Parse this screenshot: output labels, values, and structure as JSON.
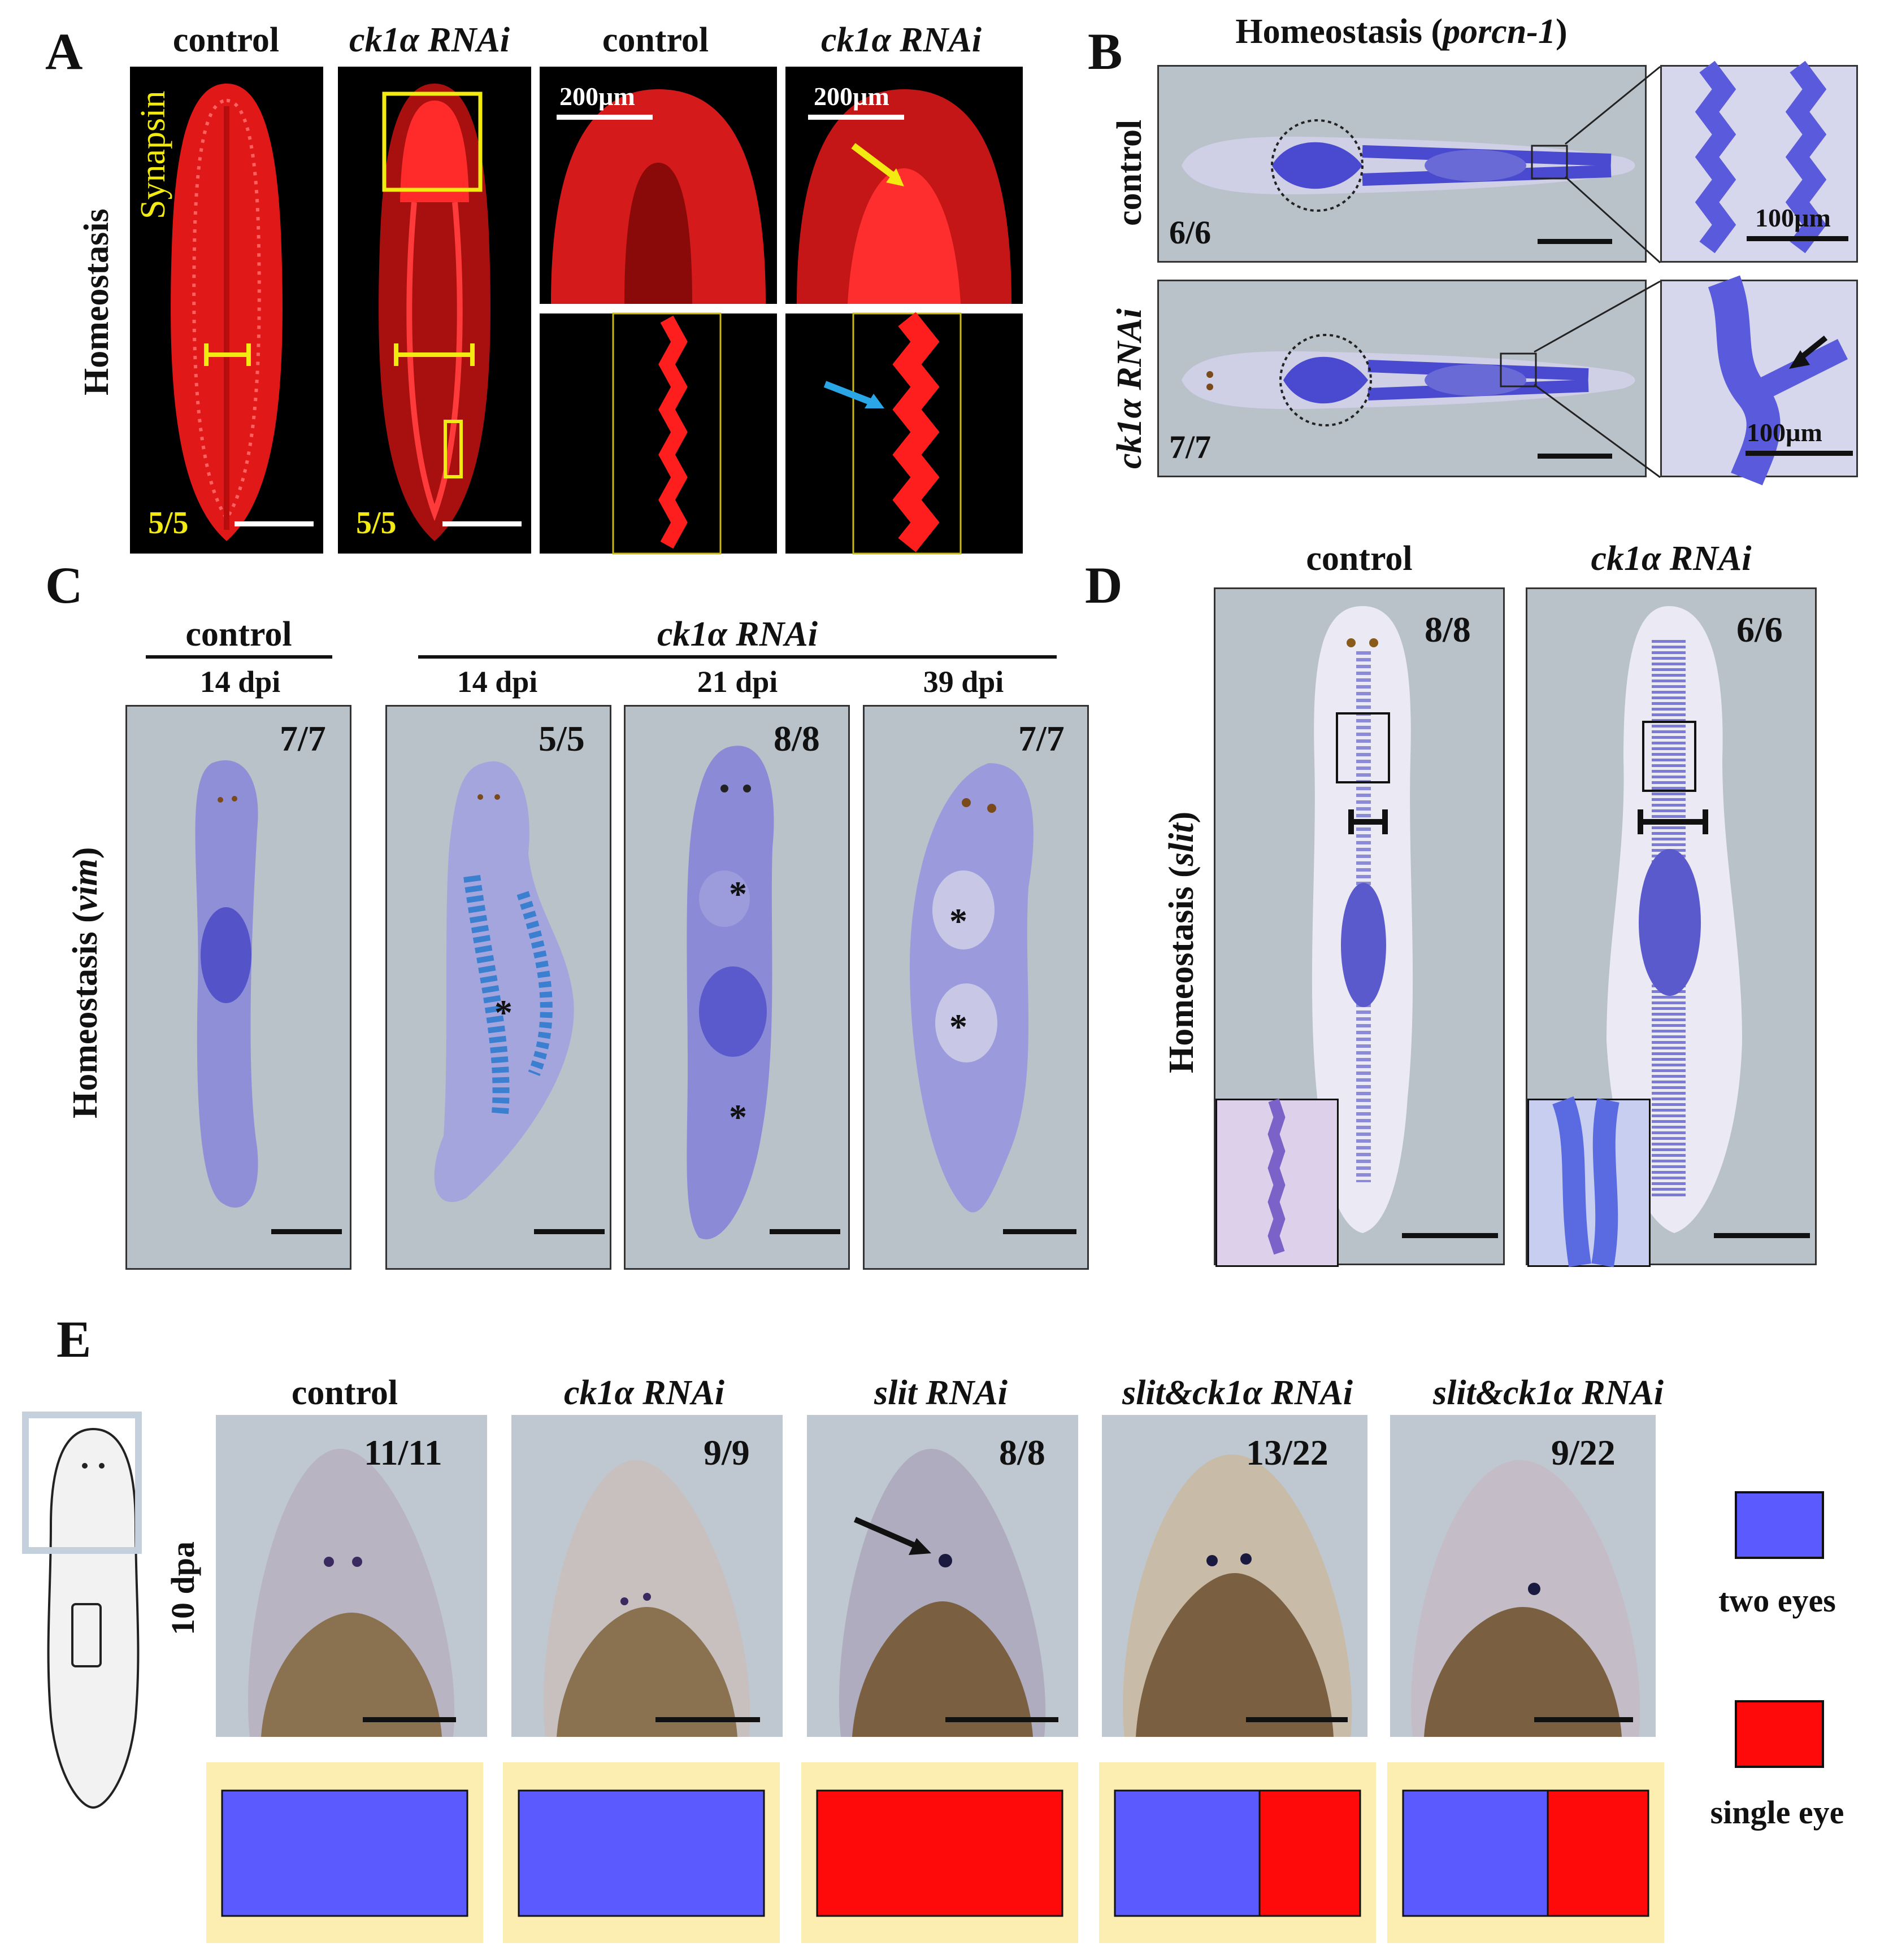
{
  "colors": {
    "synapsin_red": "#ff1e1e",
    "label_yellow": "#f2ea10",
    "stain_blue": "#5b5bd8",
    "two_eyes": "#5a5aff",
    "single_eye": "#ff0a0a",
    "panel_grey": "#b9c1c9",
    "bar_bg": "#fbeeb0"
  },
  "panelA": {
    "label": "A",
    "row_label": "Homeostasis",
    "stain_label": "Synapsin",
    "headers": [
      "control",
      "ck1α RNAi",
      "control",
      "ck1α RNAi"
    ],
    "counts": [
      "5/5",
      "5/5"
    ],
    "scale": [
      "200µm",
      "200µm"
    ]
  },
  "panelB": {
    "label": "B",
    "title_prefix": "Homeostasis (",
    "title_gene": "porcn-1",
    "title_suffix": ")",
    "rows": [
      "control",
      "ck1α RNAi"
    ],
    "counts": [
      "6/6",
      "7/7"
    ],
    "scale": [
      "100µm",
      "100µm"
    ]
  },
  "panelC": {
    "label": "C",
    "row_label_prefix": "Homeostasis (",
    "row_label_gene": "vim",
    "row_label_suffix": ")",
    "group_control": "control",
    "group_rnai": "ck1α RNAi",
    "timepoints": [
      "14 dpi",
      "14 dpi",
      "21 dpi",
      "39 dpi"
    ],
    "counts": [
      "7/7",
      "5/5",
      "8/8",
      "7/7"
    ],
    "asterisk": "*"
  },
  "panelD": {
    "label": "D",
    "row_label_prefix": "Homeostasis (",
    "row_label_gene": "slit",
    "row_label_suffix": ")",
    "headers": [
      "control",
      "ck1α RNAi"
    ],
    "counts": [
      "8/8",
      "6/6"
    ]
  },
  "panelE": {
    "label": "E",
    "row_label": "10 dpa",
    "headers": [
      "control",
      "ck1α RNAi",
      "slit RNAi",
      "slit&ck1α RNAi",
      "slit&ck1α RNAi"
    ],
    "counts": [
      "11/11",
      "9/9",
      "8/8",
      "13/22",
      "9/22"
    ],
    "legend": [
      "two eyes",
      "single eye"
    ],
    "chart_data": {
      "type": "bar",
      "stacked": true,
      "categories": [
        "control",
        "ck1α RNAi",
        "slit RNAi",
        "slit&ck1α RNAi",
        "slit&ck1α RNAi"
      ],
      "series": [
        {
          "name": "two eyes",
          "values": [
            1.0,
            1.0,
            0.0,
            0.59,
            0.59
          ]
        },
        {
          "name": "single eye",
          "values": [
            0.0,
            0.0,
            1.0,
            0.41,
            0.41
          ]
        }
      ]
    }
  }
}
